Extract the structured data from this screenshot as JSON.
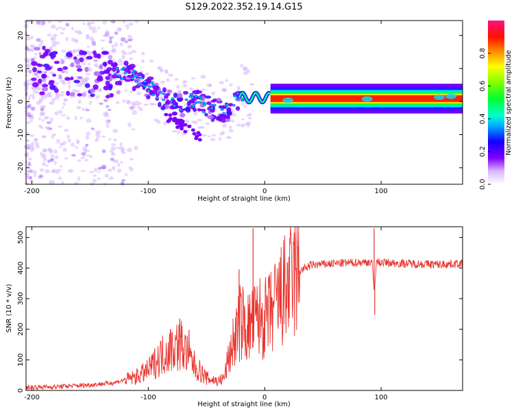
{
  "title": "S129.2022.352.19.14.G15",
  "chart_data": [
    {
      "type": "heatmap",
      "title": "S129.2022.352.19.14.G15",
      "xlabel": "Height of straight line (km)",
      "ylabel": "Frequency (Hz)",
      "xlim": [
        -205,
        170
      ],
      "ylim": [
        -25,
        24.5
      ],
      "xticks": [
        "-200",
        "-100",
        "0",
        "100"
      ],
      "xtick_values": [
        -200,
        -100,
        0,
        100
      ],
      "yticks": [
        "-20",
        "-10",
        "0",
        "10",
        "20"
      ],
      "ytick_values": [
        -20,
        -10,
        0,
        10,
        20
      ],
      "colorbar": {
        "label": "Normalized spectral amplitude",
        "range": [
          0,
          1
        ],
        "ticks": [
          "0.0",
          "0.2",
          "0.4",
          "0.6",
          "0.8"
        ],
        "tick_values": [
          0,
          0.2,
          0.4,
          0.6,
          0.8
        ]
      },
      "ridge": [
        {
          "x": -200,
          "y": 9
        },
        {
          "x": -180,
          "y": 9.5
        },
        {
          "x": -160,
          "y": 8
        },
        {
          "x": -140,
          "y": 8
        },
        {
          "x": -125,
          "y": 9
        },
        {
          "x": -110,
          "y": 7
        },
        {
          "x": -100,
          "y": 4.5
        },
        {
          "x": -90,
          "y": 2
        },
        {
          "x": -80,
          "y": 0
        },
        {
          "x": -70,
          "y": -1
        },
        {
          "x": -60,
          "y": 1
        },
        {
          "x": -50,
          "y": -2
        },
        {
          "x": -40,
          "y": -3
        },
        {
          "x": -30,
          "y": -2
        },
        {
          "x": -20,
          "y": 2
        },
        {
          "x": -10,
          "y": 0.5
        },
        {
          "x": 0,
          "y": 1.5
        },
        {
          "x": 10,
          "y": 1
        },
        {
          "x": 50,
          "y": 1
        },
        {
          "x": 100,
          "y": 1
        },
        {
          "x": 165,
          "y": 1.5
        }
      ],
      "grid": false
    },
    {
      "type": "line",
      "xlabel": "Height of straight line (km)",
      "ylabel": "SNR (10 * v/v)",
      "xlim": [
        -205,
        170
      ],
      "ylim": [
        0,
        535
      ],
      "xticks": [
        "-200",
        "-100",
        "0",
        "100"
      ],
      "xtick_values": [
        -200,
        -100,
        0,
        100
      ],
      "yticks": [
        "0",
        "100",
        "200",
        "300",
        "400",
        "500"
      ],
      "ytick_values": [
        0,
        100,
        200,
        300,
        400,
        500
      ],
      "color": "#e8302a",
      "x": [
        -205,
        -180,
        -150,
        -130,
        -110,
        -100,
        -90,
        -80,
        -72,
        -65,
        -60,
        -50,
        -40,
        -35,
        -30,
        -25,
        -20,
        -15,
        -10,
        -5,
        0,
        5,
        10,
        20,
        30,
        40,
        60,
        80,
        92,
        94,
        96,
        100,
        120,
        150,
        170
      ],
      "y": [
        10,
        12,
        18,
        25,
        45,
        65,
        110,
        140,
        150,
        110,
        80,
        40,
        30,
        40,
        120,
        180,
        230,
        200,
        220,
        240,
        230,
        250,
        280,
        340,
        390,
        410,
        415,
        418,
        420,
        330,
        420,
        418,
        415,
        412,
        415
      ],
      "spikes": [
        {
          "x": -73,
          "y": 235
        },
        {
          "x": -65,
          "y": 198
        },
        {
          "x": -22,
          "y": 395
        },
        {
          "x": -10,
          "y": 530
        },
        {
          "x": 94,
          "y": 530
        },
        {
          "x": 94.5,
          "y": 247
        }
      ],
      "grid": false
    }
  ]
}
